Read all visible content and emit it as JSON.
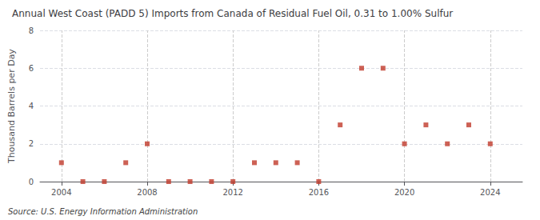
{
  "chart_data": {
    "type": "scatter",
    "title": "Annual West Coast (PADD 5) Imports from Canada of Residual Fuel Oil, 0.31 to 1.00% Sulfur",
    "ylabel": "Thousand Barrels per Day",
    "source": "Source: U.S. Energy Information Administration",
    "x": [
      2004,
      2005,
      2006,
      2007,
      2008,
      2009,
      2010,
      2011,
      2012,
      2013,
      2014,
      2015,
      2016,
      2017,
      2018,
      2019,
      2020,
      2021,
      2022,
      2023,
      2024
    ],
    "values": [
      1,
      0,
      0,
      1,
      2,
      0,
      0,
      0,
      0,
      1,
      1,
      1,
      0,
      3,
      6,
      6,
      2,
      3,
      2,
      3,
      2
    ],
    "color": "#c0392b",
    "marker": "square",
    "xlim": [
      2003.0,
      2025.5
    ],
    "xticks": [
      2004,
      2008,
      2012,
      2016,
      2020,
      2024
    ],
    "ylim": [
      0,
      8
    ],
    "yticks": [
      0,
      2,
      4,
      6,
      8
    ],
    "grid": true
  }
}
